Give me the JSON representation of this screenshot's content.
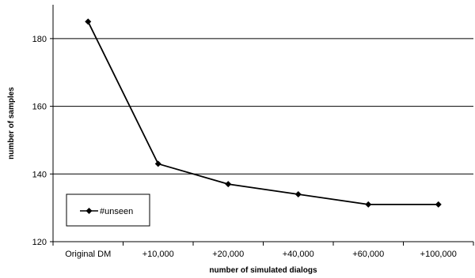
{
  "chart_data": {
    "type": "line",
    "title": "",
    "xlabel": "number of simulated dialogs",
    "ylabel": "number of samples",
    "categories": [
      "Original DM",
      "+10,000",
      "+20,000",
      "+40,000",
      "+60,000",
      "+100,000"
    ],
    "series": [
      {
        "name": "#unseen",
        "values": [
          185,
          143,
          137,
          134,
          131,
          131
        ],
        "color": "#000000",
        "marker": "diamond"
      }
    ],
    "ylim": [
      120,
      190
    ],
    "yticks": [
      120,
      140,
      160,
      180
    ],
    "grid": true,
    "legend": {
      "position": "lower-left",
      "entries": [
        "#unseen"
      ]
    }
  }
}
